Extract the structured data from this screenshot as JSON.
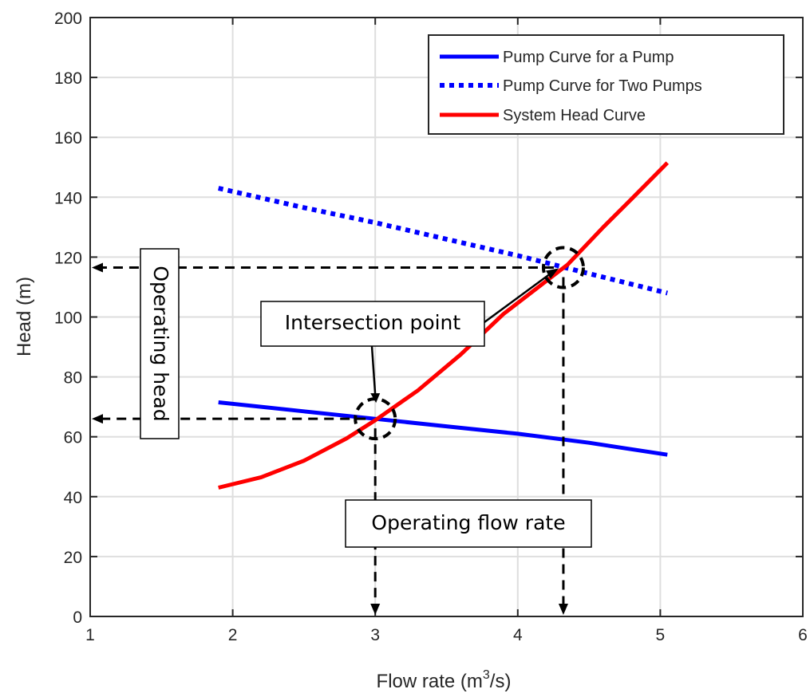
{
  "chart_data": {
    "type": "line",
    "title": "",
    "xlabel": "Flow rate (m",
    "xlabel_sup": "3",
    "xlabel_tail": "/s)",
    "ylabel": "Head (m)",
    "xlim": [
      1,
      6
    ],
    "ylim": [
      0,
      200
    ],
    "xticks": [
      1,
      2,
      3,
      4,
      5,
      6
    ],
    "yticks": [
      0,
      20,
      40,
      60,
      80,
      100,
      120,
      140,
      160,
      180,
      200
    ],
    "grid": true,
    "legend_position": "top-right",
    "series": [
      {
        "name": "Pump Curve for a Pump",
        "style": "solid",
        "color": "#0000ff",
        "x": [
          1.9,
          2.5,
          3.0,
          3.5,
          4.0,
          4.5,
          5.05
        ],
        "y": [
          71.5,
          68.5,
          66.0,
          63.5,
          61.0,
          58.0,
          54.0
        ]
      },
      {
        "name": "Pump Curve for Two Pumps",
        "style": "dotted",
        "color": "#0000ff",
        "x": [
          1.9,
          2.5,
          3.0,
          3.5,
          4.0,
          4.5,
          5.05
        ],
        "y": [
          143.0,
          136.5,
          131.5,
          126.0,
          120.5,
          114.5,
          108.0
        ]
      },
      {
        "name": "System Head Curve",
        "style": "solid",
        "color": "#ff0000",
        "x": [
          1.9,
          2.2,
          2.5,
          2.8,
          3.0,
          3.3,
          3.6,
          3.9,
          4.2,
          4.35,
          4.6,
          4.8,
          5.05
        ],
        "y": [
          43.0,
          46.5,
          52.0,
          59.5,
          65.5,
          75.5,
          87.5,
          101.0,
          112.0,
          117.5,
          130.0,
          139.5,
          151.5
        ]
      }
    ],
    "annotations": {
      "intersection_label": "Intersection point",
      "operating_head_label": "Operating head",
      "operating_flow_label": "Operating flow rate",
      "points": [
        {
          "x": 3.0,
          "y": 66
        },
        {
          "x": 4.32,
          "y": 116.5
        }
      ]
    }
  }
}
